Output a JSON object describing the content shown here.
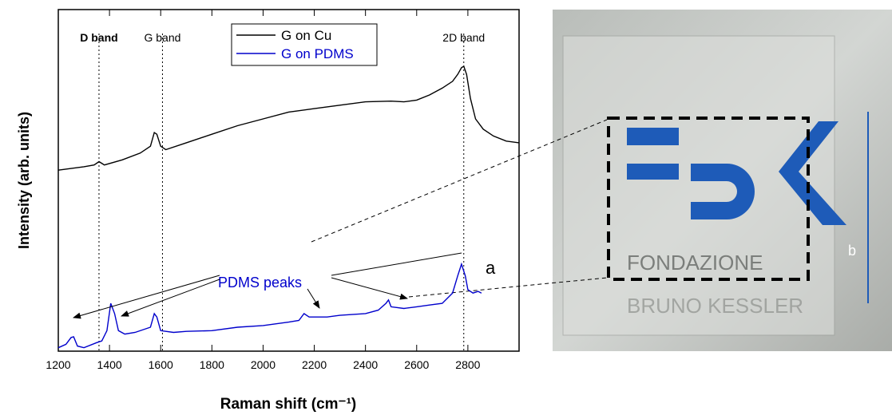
{
  "chart_data": {
    "type": "line",
    "x_label": "Raman shift (cm⁻¹)",
    "y_label": "Intensity (arb. units)",
    "xlim": [
      1200,
      3000
    ],
    "xticks": [
      1200,
      1400,
      1600,
      1800,
      2000,
      2200,
      2400,
      2600,
      2800
    ],
    "ylim": [
      0,
      100
    ],
    "legend": "top-center",
    "bands": [
      {
        "label": "D band",
        "x": 1359
      },
      {
        "label": "G band",
        "x": 1607
      },
      {
        "label": "2D band",
        "x": 2784
      }
    ],
    "annotation": "PDMS peaks",
    "panel_labels": [
      "a",
      "b"
    ],
    "photo_text": "FONDAZIONE BRUNO KESSLER",
    "series": [
      {
        "name": "G on Cu",
        "color": "#000000",
        "x": [
          1200,
          1300,
          1340,
          1359,
          1380,
          1450,
          1520,
          1560,
          1575,
          1585,
          1600,
          1620,
          1700,
          1800,
          1900,
          2000,
          2100,
          2200,
          2300,
          2400,
          2500,
          2550,
          2600,
          2650,
          2700,
          2740,
          2760,
          2775,
          2784,
          2795,
          2810,
          2830,
          2860,
          2900,
          2950,
          3000
        ],
        "values": [
          53,
          54,
          54.5,
          55.5,
          54.5,
          56,
          58,
          60,
          64,
          63.5,
          60,
          59,
          61,
          63.5,
          66,
          68,
          70,
          71,
          72,
          73,
          73.2,
          73,
          73.5,
          75,
          77,
          79,
          81,
          83,
          83.4,
          81,
          74,
          68,
          65,
          63,
          61.5,
          61
        ]
      },
      {
        "name": "G on PDMS",
        "color": "#0000cc",
        "x": [
          1200,
          1230,
          1250,
          1260,
          1275,
          1300,
          1350,
          1370,
          1390,
          1405,
          1420,
          1435,
          1460,
          1500,
          1560,
          1575,
          1585,
          1600,
          1650,
          1700,
          1800,
          1900,
          2000,
          2100,
          2140,
          2160,
          2180,
          2250,
          2300,
          2400,
          2450,
          2480,
          2490,
          2500,
          2550,
          2600,
          2650,
          2700,
          2740,
          2760,
          2775,
          2790,
          2800,
          2820,
          2840,
          2853
        ],
        "values": [
          1,
          2,
          4,
          4.2,
          1.5,
          1,
          2.5,
          3,
          6,
          14,
          11,
          6,
          5,
          5.5,
          7,
          11,
          10,
          6,
          5.5,
          5.8,
          6,
          7,
          7.5,
          8.5,
          9,
          11,
          10,
          10,
          10.5,
          11,
          12,
          14,
          15,
          13,
          12.5,
          13,
          13.5,
          14,
          17,
          22,
          25.5,
          22,
          18,
          17,
          17.5,
          17
        ]
      }
    ]
  }
}
